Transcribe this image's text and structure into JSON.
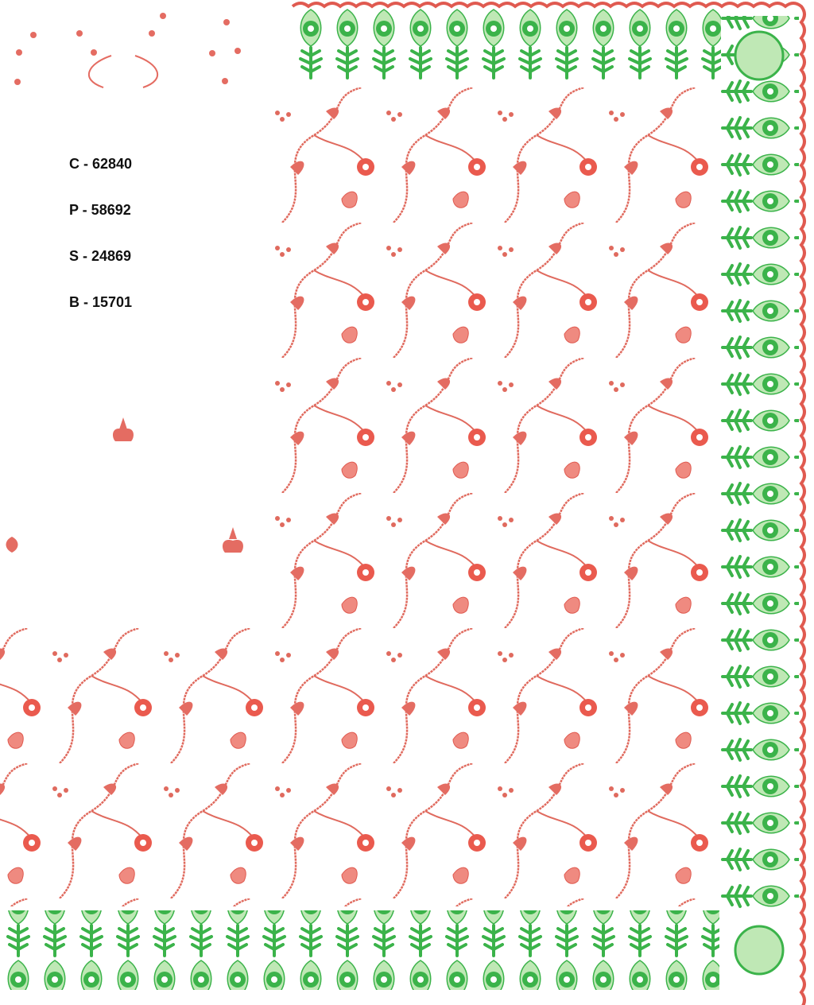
{
  "labels": [
    "C - 62840",
    "P - 58692",
    "S - 24869",
    "B - 15701"
  ]
}
